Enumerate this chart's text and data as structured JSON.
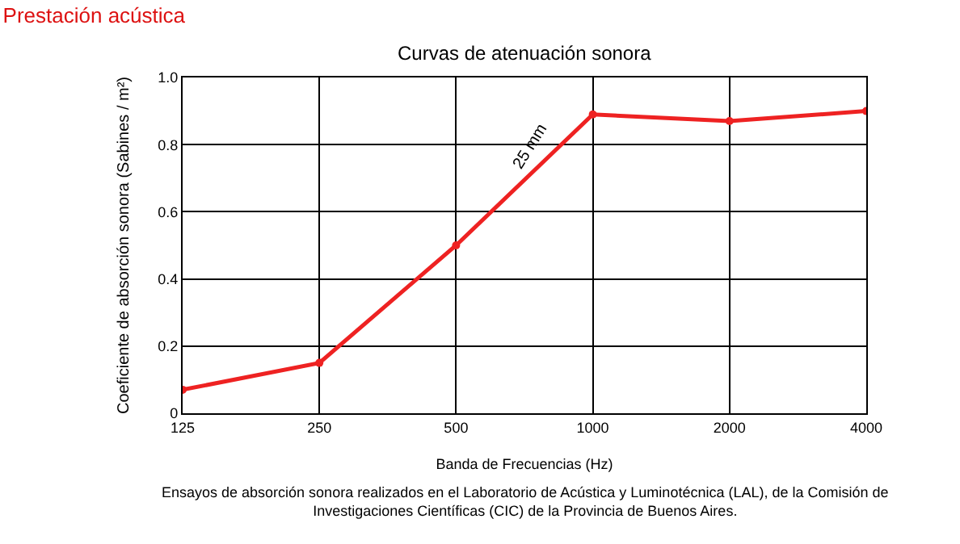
{
  "chart_data": {
    "type": "line",
    "title": "Prestación acústica",
    "subtitle": "Curvas de atenuación sonora",
    "xlabel": "Banda de Frecuencias (Hz)",
    "ylabel": "Coeficiente de absorción sonora (Sabines / m²)",
    "categories": [
      "125",
      "250",
      "500",
      "1000",
      "2000",
      "4000"
    ],
    "series": [
      {
        "name": "25 mm",
        "color": "#ee2222",
        "values": [
          0.07,
          0.15,
          0.5,
          0.89,
          0.87,
          0.9
        ]
      }
    ],
    "ylim": [
      0,
      1
    ],
    "yticks": [
      0,
      0.2,
      0.4,
      0.6,
      0.8,
      {
        "value": 1,
        "label": "1.0"
      }
    ],
    "grid": true,
    "legend": false,
    "marker": "circle",
    "line_style": "solid",
    "annotations": [
      "Ensayos de absorción sonora realizados en el Laboratorio de Acústica y Luminotécnica (LAL), de la Comisión de\nInvestigaciones Científicas (CIC) de la Provincia de Buenos Aires."
    ]
  }
}
